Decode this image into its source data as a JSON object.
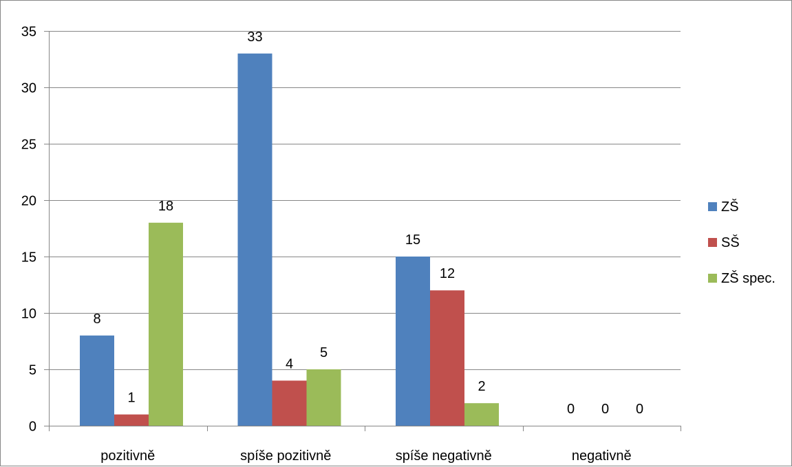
{
  "chart_data": {
    "type": "bar",
    "title": "",
    "xlabel": "",
    "ylabel": "",
    "categories": [
      "pozitivně",
      "spíše pozitivně",
      "spíše negativně",
      "negativně"
    ],
    "series": [
      {
        "name": "ZŠ",
        "values": [
          8,
          33,
          15,
          0
        ],
        "color": "#4F81BD"
      },
      {
        "name": "SŠ",
        "values": [
          1,
          4,
          12,
          0
        ],
        "color": "#C0504D"
      },
      {
        "name": "ZŠ spec.",
        "values": [
          18,
          5,
          2,
          0
        ],
        "color": "#9BBB59"
      }
    ],
    "ylim": [
      0,
      35
    ],
    "yticks": [
      0,
      5,
      10,
      15,
      20,
      25,
      30,
      35
    ],
    "grid": true,
    "data_labels": true,
    "legend_position": "right"
  }
}
